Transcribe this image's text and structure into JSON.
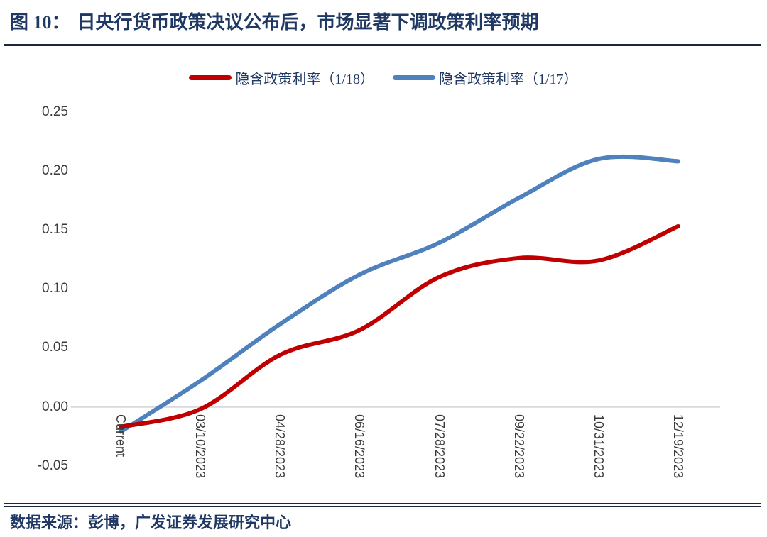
{
  "header": {
    "figure_label": "图 10：",
    "title": "日央行货币政策决议公布后，市场显著下调政策利率预期"
  },
  "legend": [
    {
      "label": "隐含政策利率（1/18）",
      "color": "#C00000"
    },
    {
      "label": "隐含政策利率（1/17）",
      "color": "#4F81BD"
    }
  ],
  "footer": {
    "source": "数据来源：彭博，广发证券发展研究中心"
  },
  "chart_data": {
    "type": "line",
    "title": "日央行货币政策决议公布后，市场显著下调政策利率预期",
    "categories": [
      "Current",
      "03/10/2023",
      "04/28/2023",
      "06/16/2023",
      "07/28/2023",
      "09/22/2023",
      "10/31/2023",
      "12/19/2023"
    ],
    "series": [
      {
        "name": "隐含政策利率（1/18）",
        "color": "#C00000",
        "values": [
          -0.017,
          -0.002,
          0.044,
          0.065,
          0.11,
          0.126,
          0.124,
          0.153
        ]
      },
      {
        "name": "隐含政策利率（1/17）",
        "color": "#4F81BD",
        "values": [
          -0.021,
          0.022,
          0.07,
          0.112,
          0.139,
          0.177,
          0.21,
          0.208
        ]
      }
    ],
    "xlabel": "",
    "ylabel": "",
    "ylim": [
      -0.05,
      0.25
    ],
    "ytick_labels": [
      "0.25",
      "0.20",
      "0.15",
      "0.10",
      "0.05",
      "0.00",
      "-0.05"
    ],
    "ytick_values": [
      0.25,
      0.2,
      0.15,
      0.1,
      0.05,
      0.0,
      -0.05
    ],
    "grid": "zero-line-only",
    "zero_line_color": "#D9D9D9",
    "legend_position": "top",
    "xtick_label_rotation_deg": 90
  }
}
